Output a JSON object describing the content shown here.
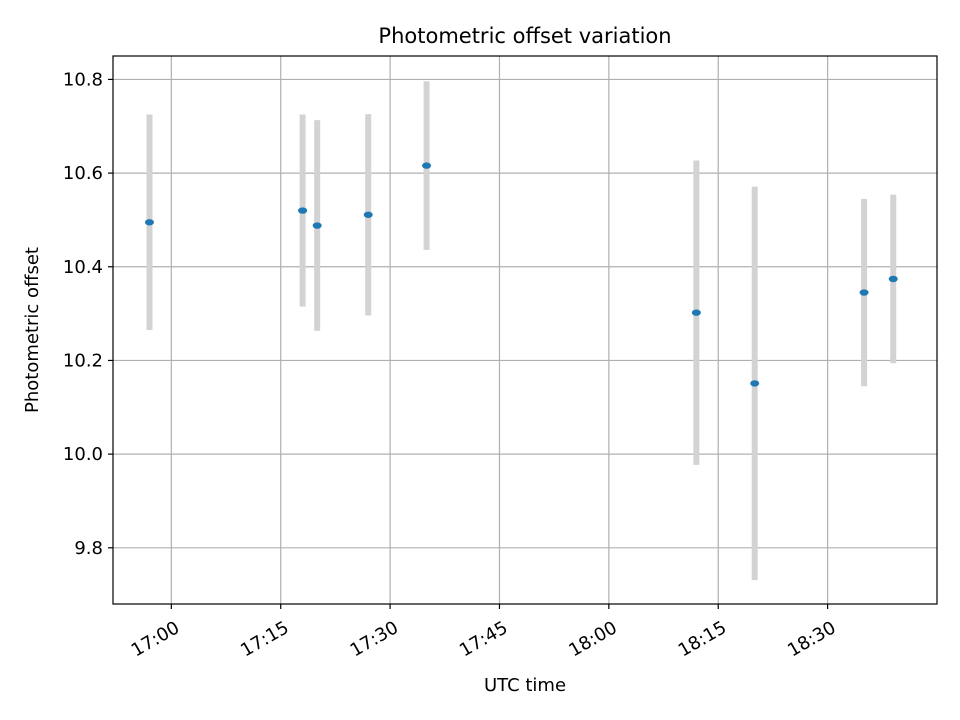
{
  "chart_data": {
    "type": "scatter",
    "title": "Photometric offset variation",
    "xlabel": "UTC time",
    "ylabel": "Photometric offset",
    "xlim": [
      "16:52",
      "18:45"
    ],
    "ylim": [
      9.68,
      10.85
    ],
    "grid": true,
    "x_ticks": [
      "17:00",
      "17:15",
      "17:30",
      "17:45",
      "18:00",
      "18:15",
      "18:30"
    ],
    "y_ticks": [
      "9.8",
      "10.0",
      "10.2",
      "10.4",
      "10.6",
      "10.8"
    ],
    "series": [
      {
        "name": "offset",
        "x": [
          "16:57",
          "17:18",
          "17:20",
          "17:27",
          "17:35",
          "18:12",
          "18:20",
          "18:35",
          "18:39"
        ],
        "y": [
          10.495,
          10.52,
          10.488,
          10.511,
          10.616,
          10.302,
          10.151,
          10.345,
          10.374
        ],
        "yerr": [
          0.23,
          0.205,
          0.225,
          0.215,
          0.18,
          0.325,
          0.42,
          0.2,
          0.18
        ]
      }
    ],
    "colors": {
      "marker": "#1f77b4",
      "errorbar": "#d3d3d3",
      "grid": "#b0b0b0",
      "axes": "#000000"
    }
  }
}
